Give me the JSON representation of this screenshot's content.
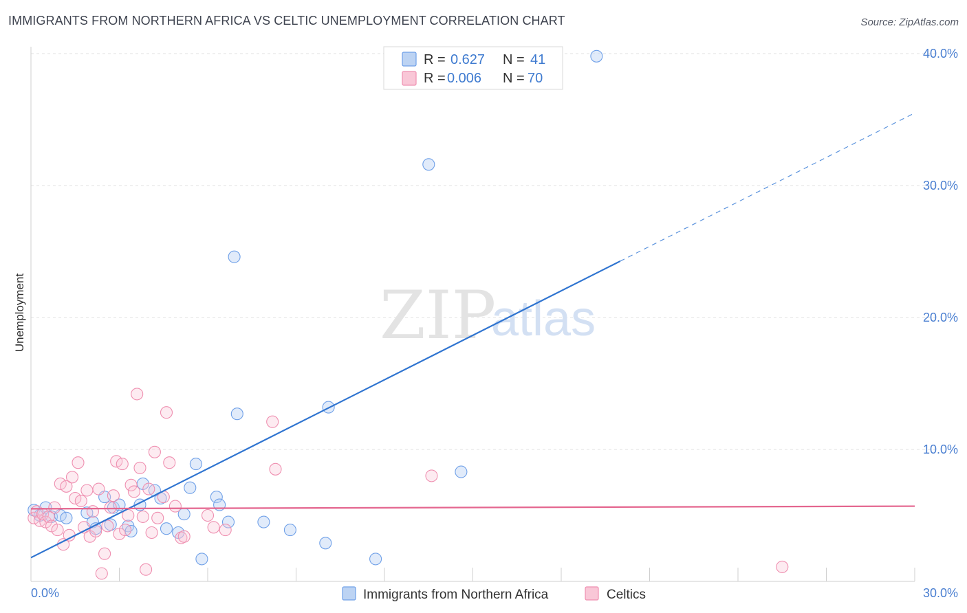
{
  "header": {
    "title": "IMMIGRANTS FROM NORTHERN AFRICA VS CELTIC UNEMPLOYMENT CORRELATION CHART",
    "source": "Source: ZipAtlas.com"
  },
  "watermark": {
    "zip": "ZIP",
    "atlas": "atlas"
  },
  "legend": {
    "rows": [
      {
        "r_label": "R = ",
        "r_value": "0.627",
        "n_label": "N = ",
        "n_value": "41",
        "color": "#6fa0e8"
      },
      {
        "r_label": "R = ",
        "r_value": "0.006",
        "n_label": "N = ",
        "n_value": "70",
        "color": "#ef8fb0"
      }
    ]
  },
  "chart_data": {
    "type": "scatter",
    "title": "IMMIGRANTS FROM NORTHERN AFRICA VS CELTIC UNEMPLOYMENT CORRELATION CHART",
    "xlabel": "",
    "ylabel": "Unemployment",
    "xlim": [
      0,
      30
    ],
    "ylim": [
      0,
      40
    ],
    "x_tick_labels": [
      "0.0%",
      "30.0%"
    ],
    "y_ticks": [
      10,
      20,
      30,
      40
    ],
    "y_tick_labels": [
      "10.0%",
      "20.0%",
      "30.0%",
      "40.0%"
    ],
    "grid": true,
    "legend_position": "top-center",
    "series": [
      {
        "name": "Immigrants from Northern Africa",
        "color": "#6fa0e8",
        "trend": {
          "x0": 0,
          "y0": 1.8,
          "x1": 30,
          "y1": 35.5,
          "solid_until_x": 20
        },
        "points": [
          [
            0.1,
            5.4
          ],
          [
            0.3,
            5.0
          ],
          [
            0.5,
            5.6
          ],
          [
            0.7,
            4.9
          ],
          [
            1.0,
            5.0
          ],
          [
            1.2,
            4.8
          ],
          [
            1.9,
            5.2
          ],
          [
            2.1,
            4.5
          ],
          [
            2.2,
            4.0
          ],
          [
            2.5,
            6.4
          ],
          [
            2.7,
            4.3
          ],
          [
            2.8,
            5.6
          ],
          [
            3.0,
            5.8
          ],
          [
            3.3,
            4.2
          ],
          [
            3.4,
            3.8
          ],
          [
            3.7,
            5.8
          ],
          [
            3.8,
            7.4
          ],
          [
            4.2,
            6.9
          ],
          [
            4.4,
            6.3
          ],
          [
            4.6,
            4.0
          ],
          [
            5.0,
            3.7
          ],
          [
            5.2,
            5.1
          ],
          [
            5.4,
            7.1
          ],
          [
            5.6,
            8.9
          ],
          [
            5.8,
            1.7
          ],
          [
            6.3,
            6.4
          ],
          [
            6.4,
            5.8
          ],
          [
            6.7,
            4.5
          ],
          [
            6.9,
            24.6
          ],
          [
            7.0,
            12.7
          ],
          [
            7.9,
            4.5
          ],
          [
            8.8,
            3.9
          ],
          [
            10.0,
            2.9
          ],
          [
            10.1,
            13.2
          ],
          [
            11.7,
            1.7
          ],
          [
            13.5,
            31.6
          ],
          [
            14.6,
            8.3
          ],
          [
            19.2,
            39.8
          ]
        ]
      },
      {
        "name": "Celtics",
        "color": "#ef8fb0",
        "trend": {
          "x0": 0,
          "y0": 5.5,
          "x1": 30,
          "y1": 5.7
        },
        "points": [
          [
            0.1,
            4.8
          ],
          [
            0.2,
            5.3
          ],
          [
            0.3,
            4.6
          ],
          [
            0.4,
            5.1
          ],
          [
            0.5,
            4.5
          ],
          [
            0.6,
            4.9
          ],
          [
            0.7,
            4.2
          ],
          [
            0.8,
            5.6
          ],
          [
            0.9,
            3.9
          ],
          [
            1.0,
            7.4
          ],
          [
            1.1,
            2.8
          ],
          [
            1.2,
            7.2
          ],
          [
            1.3,
            3.5
          ],
          [
            1.4,
            7.9
          ],
          [
            1.5,
            6.3
          ],
          [
            1.6,
            9.0
          ],
          [
            1.7,
            6.1
          ],
          [
            1.8,
            4.1
          ],
          [
            1.9,
            6.9
          ],
          [
            2.0,
            3.4
          ],
          [
            2.1,
            5.3
          ],
          [
            2.2,
            3.8
          ],
          [
            2.3,
            7.0
          ],
          [
            2.4,
            0.6
          ],
          [
            2.5,
            2.1
          ],
          [
            2.6,
            4.2
          ],
          [
            2.7,
            5.6
          ],
          [
            2.8,
            6.5
          ],
          [
            2.9,
            9.1
          ],
          [
            3.0,
            3.6
          ],
          [
            3.1,
            8.9
          ],
          [
            3.2,
            3.9
          ],
          [
            3.3,
            5.0
          ],
          [
            3.4,
            7.3
          ],
          [
            3.5,
            6.8
          ],
          [
            3.6,
            14.2
          ],
          [
            3.7,
            8.6
          ],
          [
            3.8,
            4.9
          ],
          [
            3.9,
            0.9
          ],
          [
            4.0,
            7.0
          ],
          [
            4.1,
            3.7
          ],
          [
            4.2,
            9.8
          ],
          [
            4.3,
            4.8
          ],
          [
            4.5,
            6.4
          ],
          [
            4.6,
            12.8
          ],
          [
            4.7,
            9.0
          ],
          [
            4.9,
            5.7
          ],
          [
            5.1,
            3.3
          ],
          [
            5.2,
            3.4
          ],
          [
            6.0,
            5.0
          ],
          [
            6.2,
            4.1
          ],
          [
            6.6,
            3.9
          ],
          [
            8.2,
            12.1
          ],
          [
            8.3,
            8.5
          ],
          [
            13.6,
            8.0
          ],
          [
            25.5,
            1.1
          ]
        ]
      }
    ]
  },
  "bottom_legend": [
    {
      "label": "Immigrants from Northern Africa",
      "color": "#6fa0e8"
    },
    {
      "label": "Celtics",
      "color": "#ef8fb0"
    }
  ]
}
